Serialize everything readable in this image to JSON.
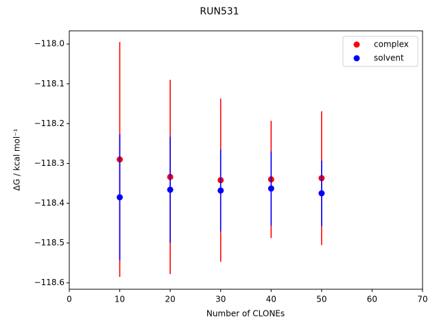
{
  "chart_data": {
    "type": "scatter",
    "title": "RUN531",
    "x_label": "Number of CLONEs",
    "y_label": "ΔG / kcal mol⁻¹",
    "xlim": [
      0,
      70
    ],
    "xticks": [
      0,
      10,
      20,
      30,
      40,
      50,
      60,
      70
    ],
    "ylim": [
      -118.616,
      -117.967
    ],
    "yticks": [
      {
        "value": -118.6,
        "label": "−118.6"
      },
      {
        "value": -118.5,
        "label": "−118.5"
      },
      {
        "value": -118.4,
        "label": "−118.4"
      },
      {
        "value": -118.3,
        "label": "−118.3"
      },
      {
        "value": -118.2,
        "label": "−118.2"
      },
      {
        "value": -118.1,
        "label": "−118.1"
      },
      {
        "value": -118.0,
        "label": "−118.0"
      }
    ],
    "legend": "upper right",
    "series": [
      {
        "name": "complex",
        "color": "#ff0000",
        "x": [
          10,
          20,
          30,
          40,
          50
        ],
        "values": [
          -118.29,
          -118.334,
          -118.342,
          -118.34,
          -118.337
        ],
        "errors": [
          0.295,
          0.244,
          0.205,
          0.147,
          0.168
        ]
      },
      {
        "name": "solvent",
        "color": "#0000ff",
        "x": [
          10,
          20,
          30,
          40,
          50
        ],
        "values": [
          -118.385,
          -118.366,
          -118.368,
          -118.363,
          -118.375
        ],
        "errors": [
          0.158,
          0.133,
          0.103,
          0.093,
          0.082
        ]
      }
    ]
  }
}
